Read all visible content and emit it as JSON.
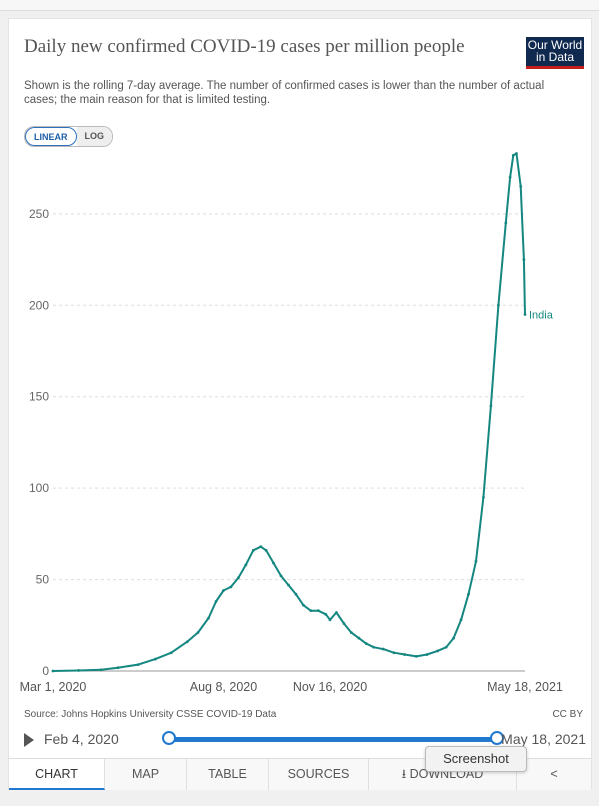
{
  "title": "Daily new confirmed COVID-19 cases per million people",
  "subtitle": "Shown is the rolling 7-day average. The number of confirmed cases is lower than the number of actual cases; the main reason for that is limited testing.",
  "logo": {
    "line1": "Our World",
    "line2": "in Data"
  },
  "scale_toggle": {
    "linear": "LINEAR",
    "log": "LOG",
    "active": "LINEAR"
  },
  "source": "Source: Johns Hopkins University CSSE COVID-19 Data",
  "license": "CC BY",
  "timeline": {
    "start": "Feb 4, 2020",
    "end": "May 18, 2021"
  },
  "tabs": {
    "chart": "CHART",
    "map": "MAP",
    "table": "TABLE",
    "sources": "SOURCES",
    "download": "DOWNLOAD",
    "active": "CHART"
  },
  "tooltip": "Screenshot",
  "colors": {
    "series": "#148781",
    "accent": "#2178cf",
    "logo_bg": "#102a4f",
    "logo_bar": "#c21e1e"
  },
  "icons": {
    "download": "download-icon",
    "share": "share-icon",
    "play": "play-icon"
  },
  "chart_data": {
    "type": "line",
    "xlim": [
      "2020-03-01",
      "2021-05-18"
    ],
    "ylim": [
      0,
      280
    ],
    "yticks": [
      0,
      50,
      100,
      150,
      200,
      250
    ],
    "xticks": [
      {
        "date": "2020-03-01",
        "label": "Mar 1, 2020"
      },
      {
        "date": "2020-08-08",
        "label": "Aug 8, 2020"
      },
      {
        "date": "2020-11-16",
        "label": "Nov 16, 2020"
      },
      {
        "date": "2021-05-18",
        "label": "May 18, 2021"
      }
    ],
    "grid": "horizontal dashed",
    "series": [
      {
        "name": "India",
        "x": [
          "2020-03-01",
          "2020-03-25",
          "2020-04-15",
          "2020-05-01",
          "2020-05-20",
          "2020-06-05",
          "2020-06-20",
          "2020-07-05",
          "2020-07-15",
          "2020-07-25",
          "2020-08-01",
          "2020-08-08",
          "2020-08-15",
          "2020-08-22",
          "2020-08-29",
          "2020-09-05",
          "2020-09-12",
          "2020-09-17",
          "2020-09-24",
          "2020-10-01",
          "2020-10-08",
          "2020-10-15",
          "2020-10-22",
          "2020-10-29",
          "2020-11-05",
          "2020-11-12",
          "2020-11-16",
          "2020-11-22",
          "2020-11-29",
          "2020-12-06",
          "2020-12-13",
          "2020-12-20",
          "2020-12-27",
          "2021-01-05",
          "2021-01-15",
          "2021-01-25",
          "2021-02-05",
          "2021-02-15",
          "2021-02-25",
          "2021-03-05",
          "2021-03-12",
          "2021-03-19",
          "2021-03-26",
          "2021-04-02",
          "2021-04-09",
          "2021-04-16",
          "2021-04-23",
          "2021-04-30",
          "2021-05-04",
          "2021-05-07",
          "2021-05-10",
          "2021-05-14",
          "2021-05-17",
          "2021-05-18"
        ],
        "y": [
          0,
          0.3,
          0.7,
          1.8,
          3.5,
          6.5,
          10,
          16,
          21,
          29,
          38,
          44,
          46,
          51,
          58,
          66,
          68,
          66,
          59,
          52,
          47,
          42,
          36,
          33,
          33,
          31,
          28,
          32,
          26,
          21,
          18,
          15,
          13,
          12,
          10,
          9,
          8,
          9,
          11,
          13,
          18,
          28,
          42,
          60,
          95,
          145,
          200,
          245,
          270,
          282,
          283,
          265,
          225,
          195
        ]
      }
    ],
    "series_label": "India"
  }
}
